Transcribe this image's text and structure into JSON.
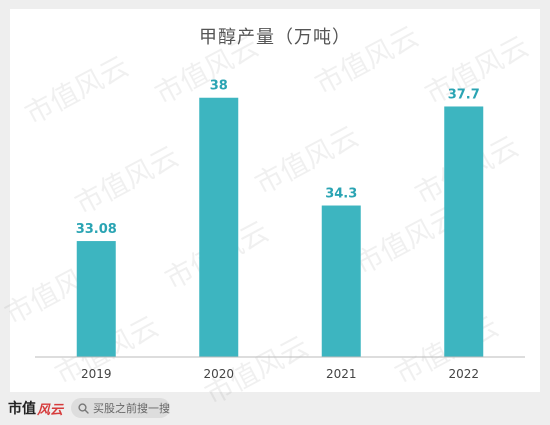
{
  "chart_data": {
    "type": "bar",
    "title": "甲醇产量（万吨）",
    "categories": [
      "2019",
      "2020",
      "2021",
      "2022"
    ],
    "values": [
      33.08,
      38,
      34.3,
      37.7
    ],
    "value_labels": [
      "33.08",
      "38",
      "34.3",
      "37.7"
    ],
    "ylim": [
      29.1,
      38.3
    ],
    "grid": false,
    "legend": "none",
    "xlabel": "",
    "ylabel": ""
  },
  "colors": {
    "bar": "#3db5c0",
    "data_label": "#2aa4b3",
    "axis": "#bbbbbb",
    "tick_label": "#444444"
  },
  "watermark": {
    "text": "市值风云"
  },
  "footer": {
    "brand_main": "市值",
    "brand_accent": "风云",
    "search_icon": "search-icon",
    "search_text": "买股之前搜一搜"
  }
}
